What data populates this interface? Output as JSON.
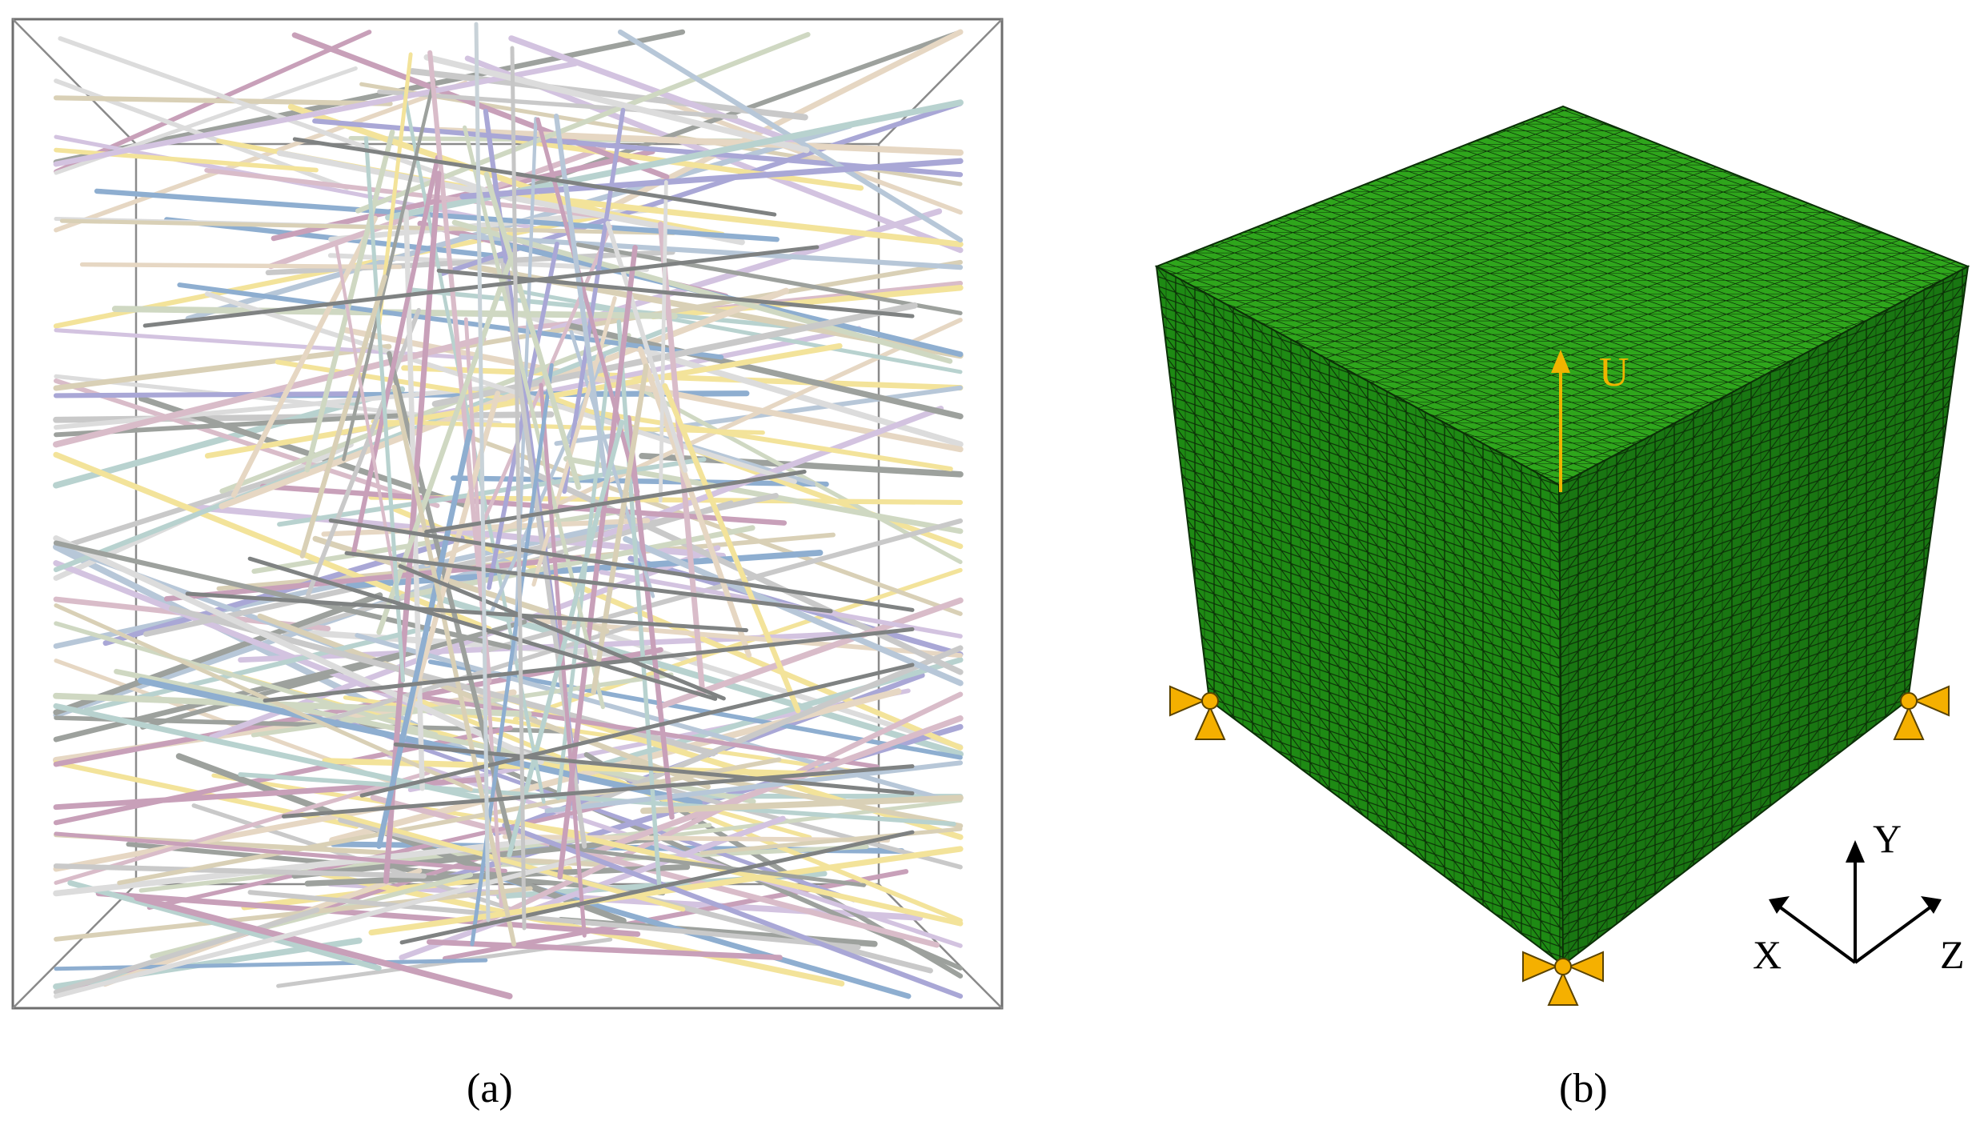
{
  "panels": {
    "a": {
      "caption": "(a)"
    },
    "b": {
      "caption": "(b)",
      "load_label": "U"
    }
  },
  "axes": {
    "x": "X",
    "y": "Y",
    "z": "Z"
  },
  "colors": {
    "mesh_front": "#1e8a14",
    "mesh_top": "#2fa61c",
    "mesh_side": "#197612",
    "mesh_line": "#0b2f07",
    "load_arrow": "#f0b400",
    "support": "#f5b000",
    "box_line": "#6e6e6e",
    "fiber_palette": [
      "#c9c9c9",
      "#dcdcdc",
      "#b7c7d8",
      "#d9bcc9",
      "#a9a7d6",
      "#cfd8c2",
      "#d9d0b6",
      "#8eaed0",
      "#c8a0b9",
      "#f3e39a",
      "#9da19d",
      "#b8d2cf",
      "#d3c3e0",
      "#e6d7c3"
    ]
  }
}
